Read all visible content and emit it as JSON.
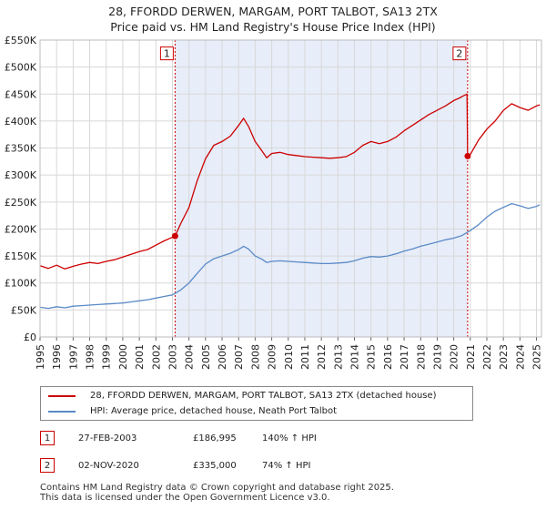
{
  "chart_data": {
    "type": "line",
    "title": "28, FFORDD DERWEN, MARGAM, PORT TALBOT, SA13 2TX",
    "subtitle": "Price paid vs. HM Land Registry's House Price Index (HPI)",
    "xlim": [
      1995,
      2025.3
    ],
    "ylim": [
      0,
      550000
    ],
    "x_ticks": [
      "1995",
      "1996",
      "1997",
      "1998",
      "1999",
      "2000",
      "2001",
      "2002",
      "2003",
      "2004",
      "2005",
      "2006",
      "2007",
      "2008",
      "2009",
      "2010",
      "2011",
      "2012",
      "2013",
      "2014",
      "2015",
      "2016",
      "2017",
      "2018",
      "2019",
      "2020",
      "2021",
      "2022",
      "2023",
      "2024",
      "2025"
    ],
    "y_ticks": [
      "£0",
      "£50K",
      "£100K",
      "£150K",
      "£200K",
      "£250K",
      "£300K",
      "£350K",
      "£400K",
      "£450K",
      "£500K",
      "£550K"
    ],
    "shaded_region": [
      2003.16,
      2020.84
    ],
    "series": [
      {
        "name": "28, FFORDD DERWEN, MARGAM, PORT TALBOT, SA13 2TX (detached house)",
        "color": "#cc0000",
        "x": [
          1995,
          1995.5,
          1996,
          1996.5,
          1997,
          1997.5,
          1998,
          1998.5,
          1999,
          1999.5,
          2000,
          2000.5,
          2001,
          2001.5,
          2002,
          2002.5,
          2003.16,
          2003.5,
          2004,
          2004.5,
          2005,
          2005.5,
          2006,
          2006.5,
          2007,
          2007.3,
          2007.6,
          2008,
          2008.4,
          2008.7,
          2009,
          2009.5,
          2010,
          2010.5,
          2011,
          2011.5,
          2012,
          2012.5,
          2013,
          2013.5,
          2014,
          2014.5,
          2015,
          2015.5,
          2016,
          2016.5,
          2017,
          2017.5,
          2018,
          2018.5,
          2019,
          2019.5,
          2020,
          2020.3,
          2020.6,
          2020.8,
          2020.84,
          2021,
          2021.5,
          2022,
          2022.5,
          2023,
          2023.5,
          2024,
          2024.5,
          2025,
          2025.2
        ],
        "values": [
          132000,
          127000,
          133000,
          126000,
          131000,
          135000,
          138000,
          136000,
          140000,
          143000,
          148000,
          153000,
          158000,
          162000,
          170000,
          178000,
          186995,
          210000,
          240000,
          290000,
          330000,
          355000,
          362000,
          372000,
          392000,
          405000,
          390000,
          362000,
          345000,
          332000,
          340000,
          342000,
          338000,
          336000,
          334000,
          333000,
          332000,
          331000,
          332000,
          334000,
          342000,
          355000,
          362000,
          358000,
          362000,
          370000,
          382000,
          392000,
          402000,
          412000,
          420000,
          428000,
          438000,
          442000,
          447000,
          450000,
          335000,
          338000,
          365000,
          385000,
          400000,
          420000,
          432000,
          425000,
          420000,
          428000,
          430000
        ]
      },
      {
        "name": "HPI: Average price, detached house, Neath Port Talbot",
        "color": "#5a8ac6",
        "x": [
          1995,
          1995.5,
          1996,
          1996.5,
          1997,
          1997.5,
          1998,
          1998.5,
          1999,
          1999.5,
          2000,
          2000.5,
          2001,
          2001.5,
          2002,
          2002.5,
          2003,
          2003.5,
          2004,
          2004.5,
          2005,
          2005.5,
          2006,
          2006.5,
          2007,
          2007.3,
          2007.6,
          2008,
          2008.4,
          2008.7,
          2009,
          2009.5,
          2010,
          2010.5,
          2011,
          2011.5,
          2012,
          2012.5,
          2013,
          2013.5,
          2014,
          2014.5,
          2015,
          2015.5,
          2016,
          2016.5,
          2017,
          2017.5,
          2018,
          2018.5,
          2019,
          2019.5,
          2020,
          2020.5,
          2021,
          2021.5,
          2022,
          2022.5,
          2023,
          2023.5,
          2024,
          2024.5,
          2025,
          2025.2
        ],
        "values": [
          55000,
          53000,
          56000,
          54000,
          57000,
          58000,
          59000,
          60000,
          61000,
          62000,
          63000,
          65000,
          67000,
          69000,
          72000,
          75000,
          78000,
          87000,
          100000,
          118000,
          135000,
          145000,
          150000,
          155000,
          162000,
          168000,
          163000,
          150000,
          144000,
          138000,
          140000,
          141000,
          140000,
          139000,
          138000,
          137000,
          136000,
          136000,
          137000,
          138000,
          141000,
          146000,
          149000,
          148000,
          150000,
          154000,
          159000,
          163000,
          168000,
          172000,
          176000,
          180000,
          183000,
          188000,
          197000,
          208000,
          222000,
          233000,
          240000,
          247000,
          243000,
          238000,
          242000,
          245000
        ]
      }
    ],
    "markers": [
      {
        "label": "1",
        "x": 2003.16,
        "y": 186995
      },
      {
        "label": "2",
        "x": 2020.84,
        "y": 335000
      }
    ]
  },
  "legend": {
    "items": [
      {
        "label": "28, FFORDD DERWEN, MARGAM, PORT TALBOT, SA13 2TX (detached house)",
        "color": "#cc0000"
      },
      {
        "label": "HPI: Average price, detached house, Neath Port Talbot",
        "color": "#5a8ac6"
      }
    ]
  },
  "sales": [
    {
      "num": "1",
      "date": "27-FEB-2003",
      "price": "£186,995",
      "hpi": "140% ↑ HPI"
    },
    {
      "num": "2",
      "date": "02-NOV-2020",
      "price": "£335,000",
      "hpi": "74% ↑ HPI"
    }
  ],
  "footer": {
    "line1": "Contains HM Land Registry data © Crown copyright and database right 2025.",
    "line2": "This data is licensed under the Open Government Licence v3.0."
  }
}
